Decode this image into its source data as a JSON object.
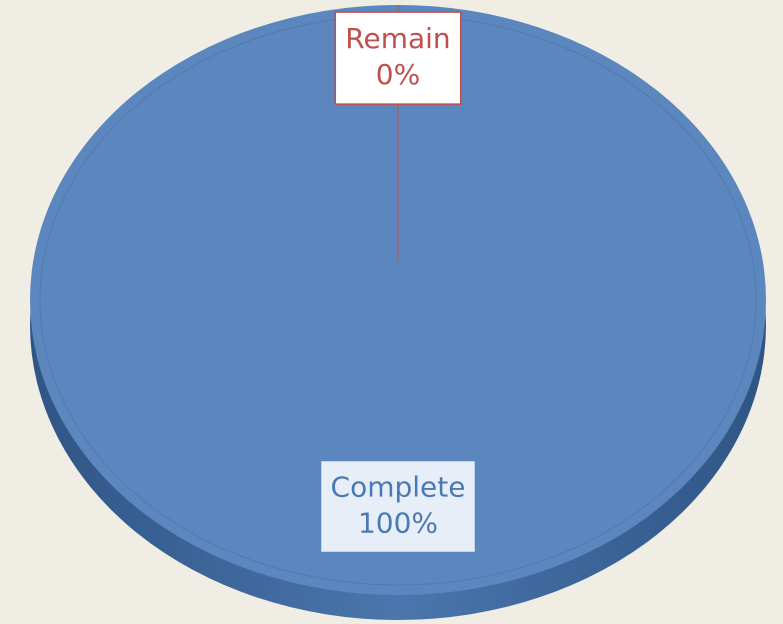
{
  "chart_data": {
    "type": "pie",
    "categories": [
      "Complete",
      "Remain"
    ],
    "values": [
      100,
      0
    ],
    "value_labels": [
      "100%",
      "0%"
    ],
    "colors": [
      "#5b87be",
      "#c0504d"
    ]
  }
}
